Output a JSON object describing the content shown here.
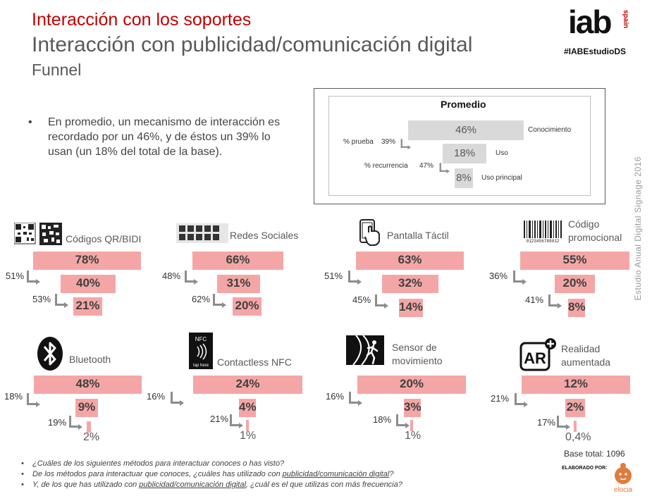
{
  "header": {
    "title": "Interacción con los soportes",
    "subtitle": "Interacción con publicidad/comunicación digital",
    "section": "Funnel"
  },
  "brand": {
    "logo_text": "iab",
    "logo_sub": "spain",
    "hashtag": "#IABEstudioDS"
  },
  "sidebar_text": "Estudio Anual Digital Signage 2016",
  "summary": "En promedio, un mecanismo de interacción es recordado por un 46%, y de éstos un 39% lo usan (un 18% del total de la base).",
  "average": {
    "title": "Promedio",
    "levels": [
      {
        "value": "46%",
        "label": "Conocimiento"
      },
      {
        "value": "18%",
        "label": "Uso"
      },
      {
        "value": "8%",
        "label": "Uso principal"
      }
    ],
    "trial_label": "% prueba",
    "trial_value": "39%",
    "recurrence_label": "% recurrencia",
    "recurrence_value": "47%"
  },
  "mechanisms": [
    {
      "name": "Códigos QR/BIDI",
      "icon": "qr-code-icon",
      "k": "78%",
      "u": "40%",
      "p": "21%",
      "r1": "51%",
      "r2": "53%"
    },
    {
      "name": "Redes Sociales",
      "icon": "social-networks-icon",
      "k": "66%",
      "u": "31%",
      "p": "20%",
      "r1": "48%",
      "r2": "62%"
    },
    {
      "name": "Pantalla Táctil",
      "icon": "touchscreen-icon",
      "k": "63%",
      "u": "32%",
      "p": "14%",
      "r1": "51%",
      "r2": "45%"
    },
    {
      "name": "Código promocional",
      "icon": "barcode-icon",
      "barcode_digits": "0123456789012",
      "k": "55%",
      "u": "20%",
      "p": "8%",
      "r1": "36%",
      "r2": "41%"
    },
    {
      "name": "Bluetooth",
      "icon": "bluetooth-icon",
      "k": "48%",
      "u": "9%",
      "p": "2%",
      "r1": "18%",
      "r2": "19%"
    },
    {
      "name": "Contactless NFC",
      "icon": "nfc-icon",
      "nfc_top": "NFC",
      "nfc_bottom": "tap here",
      "k": "24%",
      "u": "4%",
      "p": "1%",
      "r1": "16%",
      "r2": "21%"
    },
    {
      "name": "Sensor de movimiento",
      "icon": "motion-sensor-icon",
      "k": "20%",
      "u": "3%",
      "p": "1%",
      "r1": "16%",
      "r2": "18%"
    },
    {
      "name": "Realidad aumentada",
      "icon": "augmented-reality-icon",
      "ar_text": "AR",
      "k": "12%",
      "u": "2%",
      "p": "0,4%",
      "r1": "21%",
      "r2": "17%"
    }
  ],
  "questions": {
    "q1": "¿Cuáles de los siguientes métodos para interactuar conoces o has visto?",
    "q2a": "De los métodos para interactuar que conoces, ¿cuáles has utilizado con ",
    "q2u": "publicidad/comunicación digital",
    "q2b": "?",
    "q3a": "Y, de los que has utilizado con ",
    "q3u": "publicidad/comunicación digital",
    "q3b": ", ¿cuál es el que utilizas con más frecuencia?"
  },
  "base_total": "Base total: 1096",
  "credit": {
    "label": "ELABORADO POR:",
    "company": "elocia"
  },
  "colors": {
    "accent": "#c00000",
    "bar": "#f4a6a6",
    "gray_bar": "#d9d9d9"
  }
}
